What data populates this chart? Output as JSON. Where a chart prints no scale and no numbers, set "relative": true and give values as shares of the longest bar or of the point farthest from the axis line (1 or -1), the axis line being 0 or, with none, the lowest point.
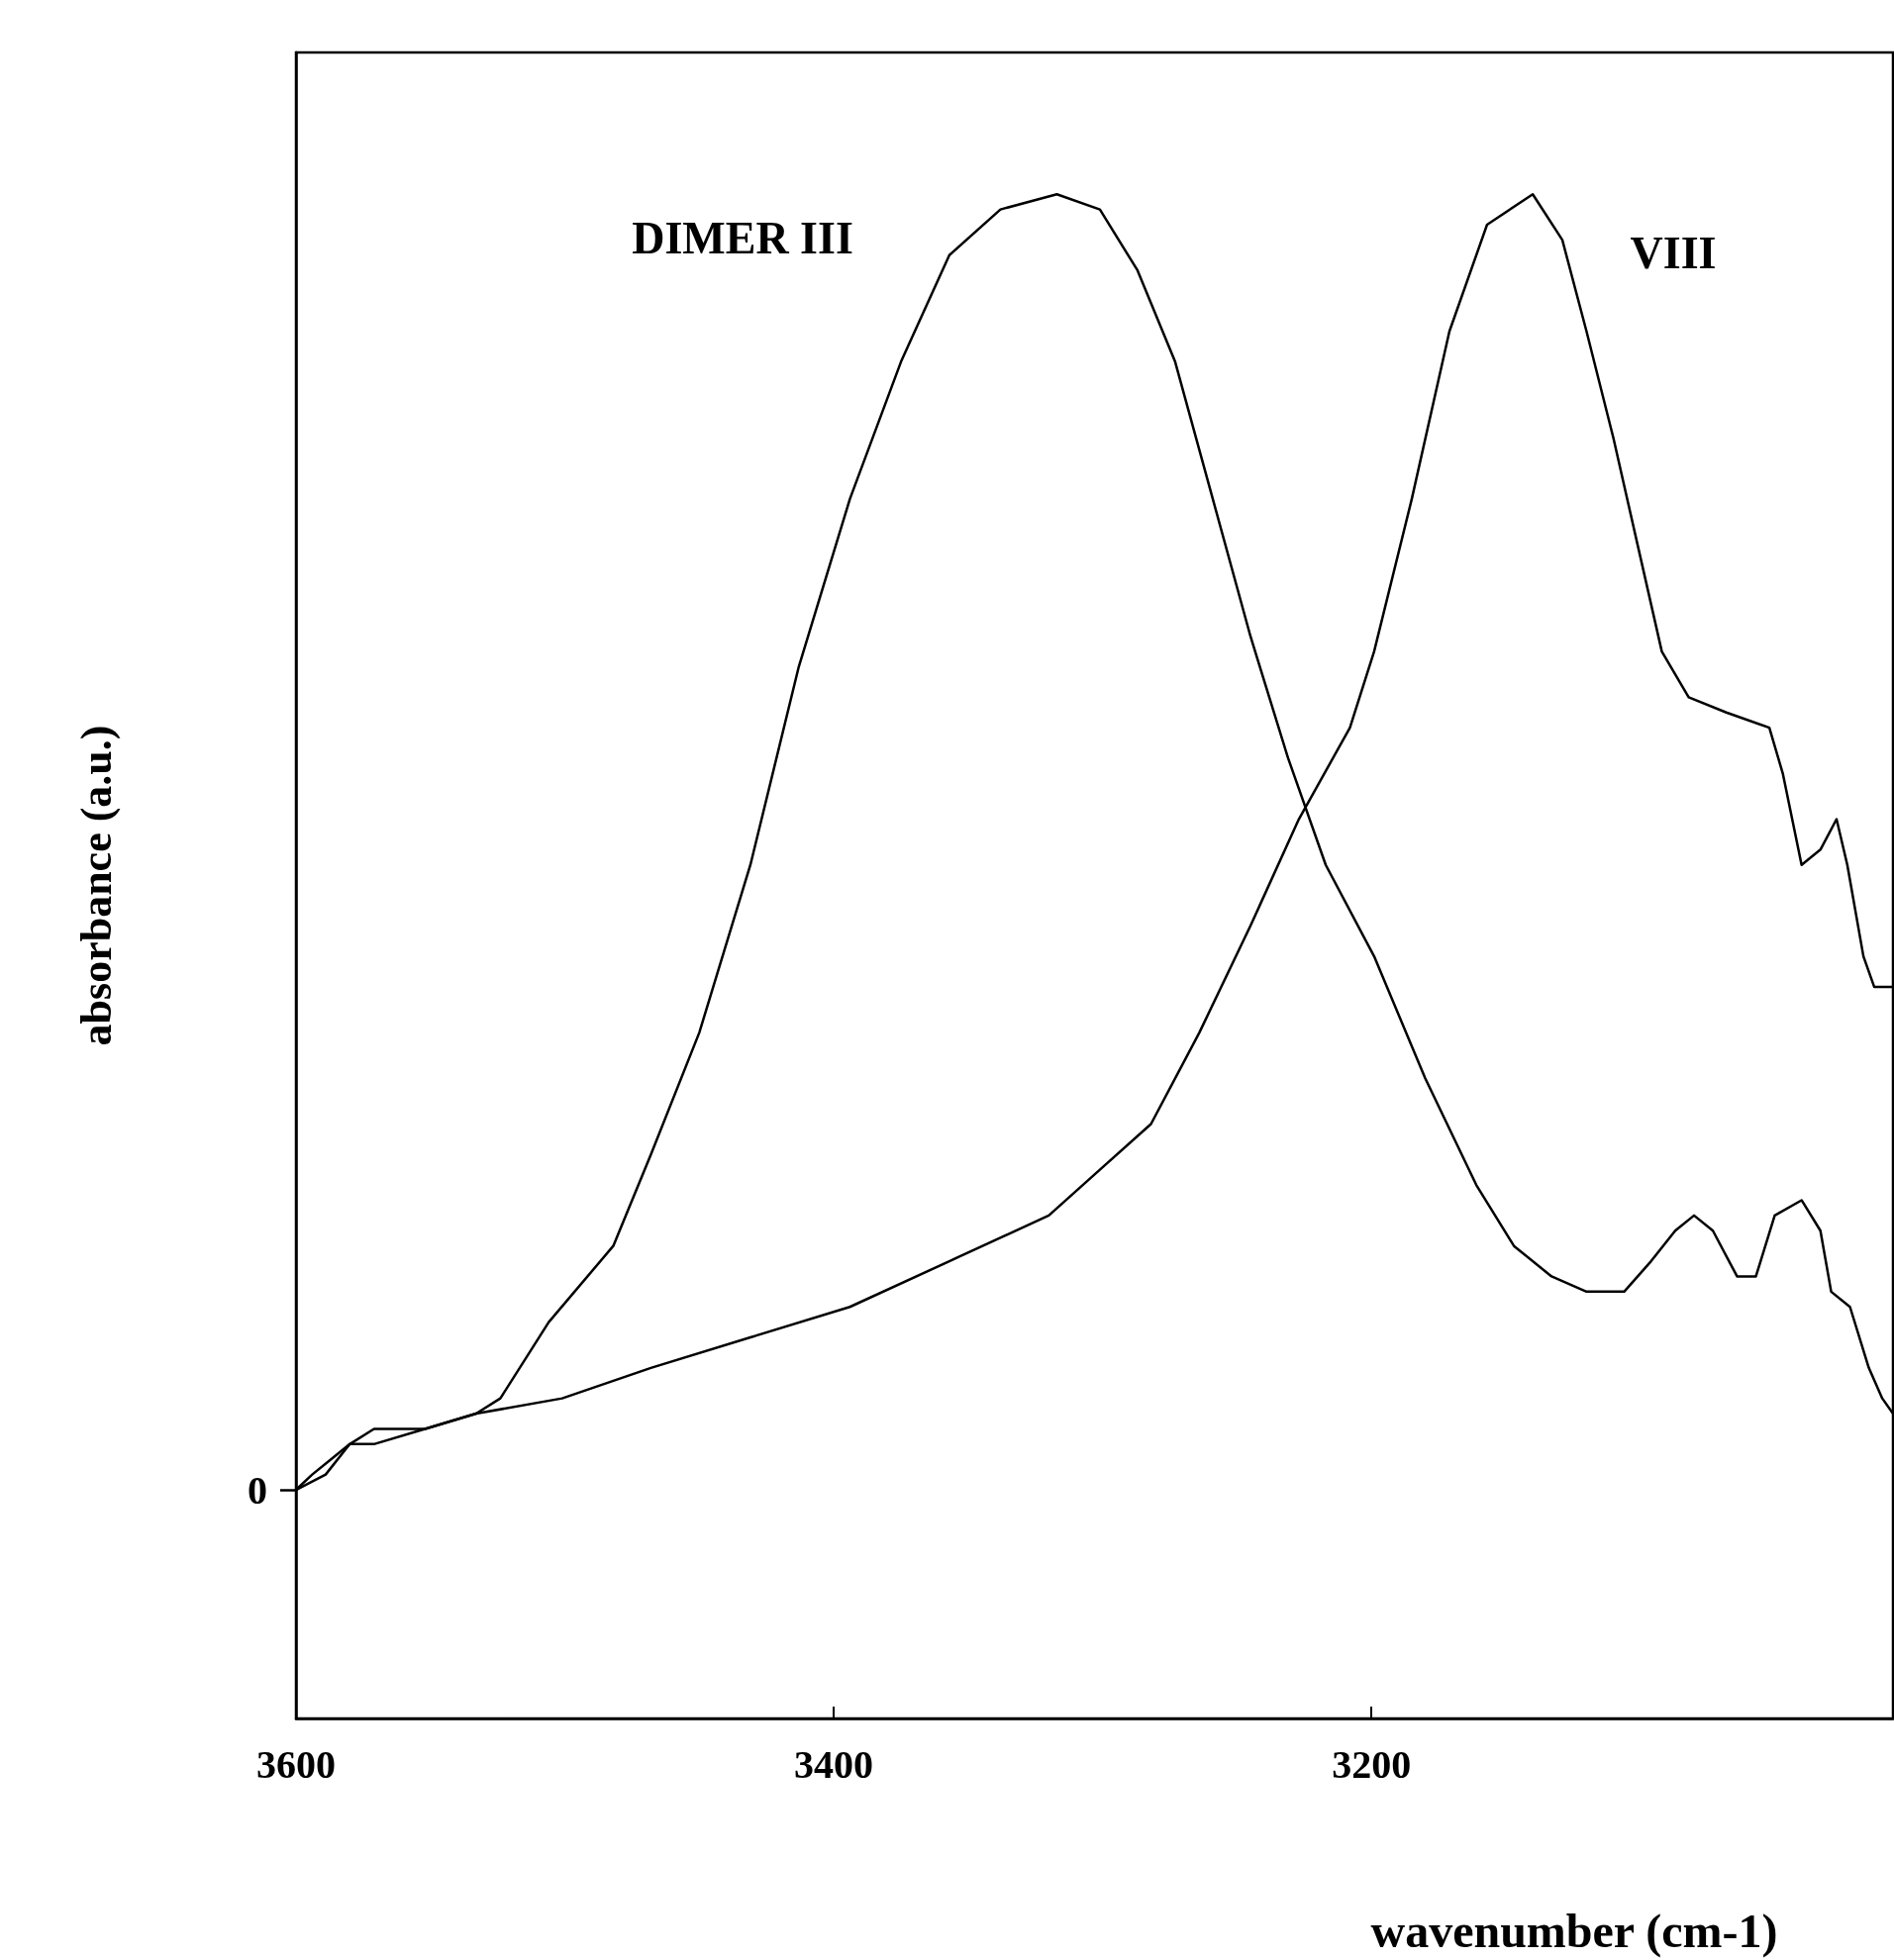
{
  "chart_data": {
    "type": "line",
    "relative": true,
    "xlabel": "wavenumber (cm-1)",
    "ylabel": "absorbance (a.u.)",
    "xlim": [
      3600,
      3006
    ],
    "xticks": [
      3600,
      3400,
      3200
    ],
    "marker": "none",
    "line_style": "solid",
    "annotations": [
      "DIMER III",
      "VIII",
      "0"
    ],
    "series": [
      {
        "color": "#000000",
        "x": [
          3600,
          3594,
          3587,
          3580,
          3571,
          3552,
          3533,
          3524,
          3506,
          3482,
          3468,
          3450,
          3431,
          3413,
          3394,
          3375,
          3357,
          3338,
          3317,
          3301,
          3287,
          3273,
          3259,
          3245,
          3231,
          3217,
          3199,
          3180,
          3161,
          3147,
          3133,
          3120,
          3106,
          3096,
          3087,
          3080,
          3073,
          3064,
          3057,
          3050,
          3040,
          3033,
          3029,
          3022,
          3015,
          3010,
          3006
        ],
        "values": [
          0.15,
          0.16,
          0.17,
          0.18,
          0.19,
          0.19,
          0.2,
          0.21,
          0.26,
          0.31,
          0.37,
          0.45,
          0.56,
          0.69,
          0.8,
          0.89,
          0.96,
          0.99,
          1.0,
          0.99,
          0.95,
          0.89,
          0.8,
          0.71,
          0.63,
          0.56,
          0.5,
          0.42,
          0.35,
          0.31,
          0.29,
          0.28,
          0.28,
          0.3,
          0.32,
          0.33,
          0.32,
          0.29,
          0.29,
          0.33,
          0.34,
          0.32,
          0.28,
          0.27,
          0.23,
          0.21,
          0.2
        ]
      },
      {
        "color": "#000000",
        "x": [
          3600,
          3589,
          3580,
          3571,
          3552,
          3533,
          3501,
          3468,
          3431,
          3394,
          3357,
          3320,
          3301,
          3282,
          3264,
          3245,
          3227,
          3208,
          3199,
          3185,
          3171,
          3157,
          3140,
          3129,
          3120,
          3110,
          3101,
          3092,
          3082,
          3068,
          3052,
          3047,
          3040,
          3033,
          3027,
          3023,
          3017,
          3013,
          3006
        ],
        "values": [
          0.15,
          0.16,
          0.18,
          0.18,
          0.19,
          0.2,
          0.21,
          0.23,
          0.25,
          0.27,
          0.3,
          0.33,
          0.36,
          0.39,
          0.45,
          0.52,
          0.59,
          0.65,
          0.7,
          0.8,
          0.91,
          0.98,
          1.0,
          0.97,
          0.91,
          0.84,
          0.77,
          0.7,
          0.67,
          0.66,
          0.65,
          0.62,
          0.56,
          0.57,
          0.59,
          0.56,
          0.5,
          0.48,
          0.48
        ]
      }
    ]
  }
}
